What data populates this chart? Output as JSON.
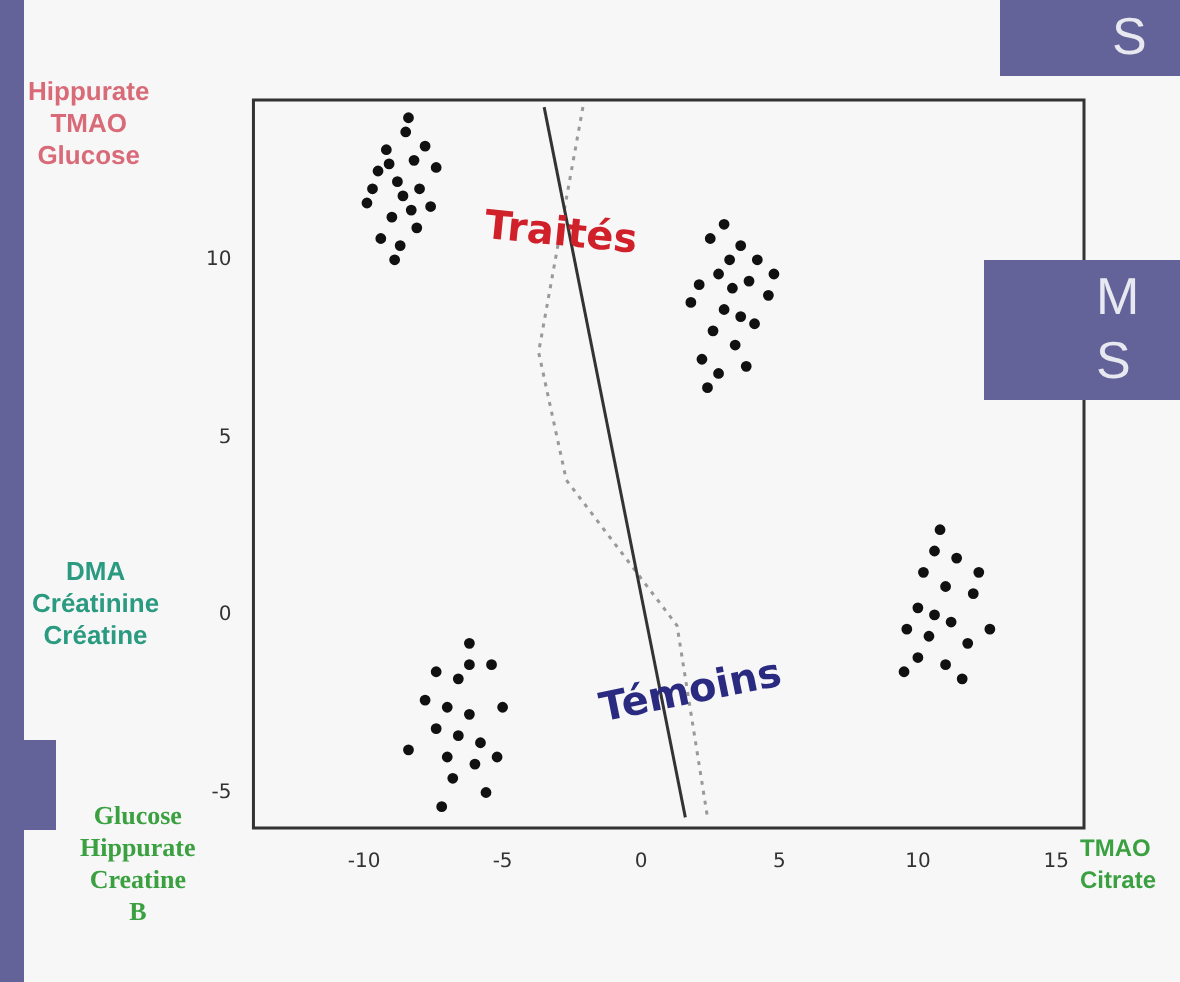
{
  "chart_data": {
    "type": "scatter",
    "xlim": [
      -14,
      16
    ],
    "xticks": [
      -10,
      -5,
      0,
      5,
      10,
      15
    ],
    "ylim": [
      -6,
      14.5
    ],
    "yticks": [
      -5,
      0,
      5,
      10
    ],
    "grid": false,
    "legend": false,
    "marker": "circle",
    "series": [
      {
        "color": "#111111",
        "x": [
          -9.5,
          -9.2,
          -8.8,
          -8.5,
          -8.2,
          -9.9,
          -9.0,
          -8.6,
          -8.0,
          -7.6,
          -9.4,
          -8.7,
          -8.1,
          -7.4,
          -9.7,
          -8.4,
          -7.8,
          -8.9,
          -9.1,
          -8.3
        ],
        "values": [
          12.5,
          13.1,
          12.2,
          13.6,
          12.8,
          11.6,
          11.2,
          11.8,
          12.0,
          11.5,
          10.6,
          10.4,
          10.9,
          12.6,
          12.0,
          14.0,
          13.2,
          10.0,
          12.7,
          11.4
        ]
      },
      {
        "color": "#111111",
        "x": [
          2.5,
          3.0,
          3.6,
          4.2,
          2.8,
          3.3,
          3.9,
          4.6,
          2.1,
          3.0,
          3.6,
          4.1,
          2.6,
          3.4,
          2.2,
          2.8,
          3.8,
          4.8,
          1.8,
          3.2,
          2.4
        ],
        "values": [
          10.6,
          11.0,
          10.4,
          10.0,
          9.6,
          9.2,
          9.4,
          9.0,
          9.3,
          8.6,
          8.4,
          8.2,
          8.0,
          7.6,
          7.2,
          6.8,
          7.0,
          9.6,
          8.8,
          10.0,
          6.4
        ]
      },
      {
        "color": "#111111",
        "x": [
          10.8,
          11.4,
          10.2,
          11.0,
          12.0,
          10.0,
          10.6,
          11.2,
          9.6,
          10.4,
          11.8,
          12.6,
          10.0,
          11.0,
          9.5,
          11.6,
          12.2,
          10.6
        ],
        "values": [
          2.4,
          1.6,
          1.2,
          0.8,
          0.6,
          0.2,
          0.0,
          -0.2,
          -0.4,
          -0.6,
          -0.8,
          -0.4,
          -1.2,
          -1.4,
          -1.6,
          -1.8,
          1.2,
          1.8
        ]
      },
      {
        "color": "#111111",
        "x": [
          -6.2,
          -7.4,
          -6.6,
          -5.4,
          -7.8,
          -7.0,
          -6.2,
          -5.0,
          -7.4,
          -6.6,
          -5.8,
          -8.4,
          -7.0,
          -6.0,
          -5.2,
          -6.8,
          -5.6,
          -7.2,
          -6.2
        ],
        "values": [
          -0.8,
          -1.6,
          -1.8,
          -1.4,
          -2.4,
          -2.6,
          -2.8,
          -2.6,
          -3.2,
          -3.4,
          -3.6,
          -3.8,
          -4.0,
          -4.2,
          -4.0,
          -4.6,
          -5.0,
          -5.4,
          -1.4
        ]
      },
      {
        "type": "line",
        "color": "#333333",
        "line_style": "solid",
        "marker": "none",
        "x": [
          -3.5,
          1.6
        ],
        "values": [
          14.3,
          -5.7
        ]
      },
      {
        "type": "line",
        "color": "#999999",
        "line_style": "dotted",
        "marker": "none",
        "x": [
          -2.1,
          -3.7,
          -2.7,
          1.3,
          2.4
        ],
        "values": [
          14.3,
          7.4,
          3.8,
          -0.3,
          -5.7
        ]
      }
    ],
    "annotations": [
      {
        "text": "Traités",
        "x": -2.9,
        "y": 10.7
      },
      {
        "text": "Témoins",
        "x": 1.8,
        "y": -2.2
      },
      "Hippurate\nTMAO\nGlucose",
      "DMA\nCréatinine\nCréatine",
      "Glucose\nHippurate\nCreatine\nB",
      "TMAO\nCitrate",
      "S",
      "M\nS"
    ]
  }
}
